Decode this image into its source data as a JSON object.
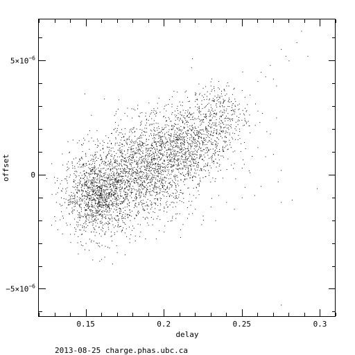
{
  "chart_data": {
    "type": "scatter",
    "title": "",
    "xlabel": "delay",
    "ylabel": "offset",
    "xlim": [
      0.12,
      0.31
    ],
    "ylim": [
      -6.2e-06,
      6.8e-06
    ],
    "grid": false,
    "x_ticks": [
      {
        "value": 0.15,
        "label": "0.15"
      },
      {
        "value": 0.2,
        "label": "0.2"
      },
      {
        "value": 0.25,
        "label": "0.25"
      },
      {
        "value": 0.3,
        "label": "0.3"
      }
    ],
    "y_ticks": [
      {
        "value": -5e-06,
        "mantissa": "−5×10",
        "exponent": "−6"
      },
      {
        "value": 0,
        "mantissa": "0",
        "exponent": ""
      },
      {
        "value": 5e-06,
        "mantissa": "5×10",
        "exponent": "−6"
      }
    ],
    "x_minor_step": 0.01,
    "y_minor_step": 1e-06,
    "series": [
      {
        "points": [
          [
            0.128,
            -2.2e-06
          ],
          [
            0.131,
            -1.2e-06
          ],
          [
            0.135,
            -1.8e-06
          ],
          [
            0.138,
            -2.2e-06
          ],
          [
            0.14,
            -2.6e-06
          ],
          [
            0.142,
            -8e-07
          ],
          [
            0.145,
            -2.7e-06
          ],
          [
            0.148,
            -3.1e-06
          ],
          [
            0.15,
            -3e-06
          ],
          [
            0.152,
            -3.3e-06
          ],
          [
            0.155,
            -2.9e-06
          ],
          [
            0.158,
            -3.1e-06
          ],
          [
            0.16,
            -3.7e-06
          ],
          [
            0.162,
            -3.6e-06
          ],
          [
            0.165,
            -3.2e-06
          ],
          [
            0.167,
            -3.9e-06
          ],
          [
            0.17,
            -3.4e-06
          ],
          [
            0.175,
            -3.5e-06
          ],
          [
            0.178,
            -2.8e-06
          ],
          [
            0.185,
            -2.5e-06
          ],
          [
            0.19,
            -2.2e-06
          ],
          [
            0.195,
            -2.8e-06
          ],
          [
            0.2,
            -2.5e-06
          ],
          [
            0.205,
            -2e-06
          ],
          [
            0.21,
            -1.7e-06
          ],
          [
            0.215,
            -1.9e-06
          ],
          [
            0.22,
            -1.5e-06
          ],
          [
            0.225,
            -1.8e-06
          ],
          [
            0.23,
            -1.4e-06
          ],
          [
            0.233,
            -2e-06
          ],
          [
            0.16,
            7e-07
          ],
          [
            0.165,
            1.1e-06
          ],
          [
            0.17,
            1.4e-06
          ],
          [
            0.175,
            1.8e-06
          ],
          [
            0.18,
            2e-06
          ],
          [
            0.185,
            2.3e-06
          ],
          [
            0.19,
            2.4e-06
          ],
          [
            0.195,
            2.7e-06
          ],
          [
            0.2,
            2.9e-06
          ],
          [
            0.205,
            3.1e-06
          ],
          [
            0.21,
            3.2e-06
          ],
          [
            0.215,
            3.4e-06
          ],
          [
            0.22,
            3.6e-06
          ],
          [
            0.225,
            3.8e-06
          ],
          [
            0.23,
            3.9e-06
          ],
          [
            0.235,
            4.1e-06
          ],
          [
            0.24,
            3.9e-06
          ],
          [
            0.245,
            3.8e-06
          ],
          [
            0.25,
            3.7e-06
          ],
          [
            0.255,
            3.5e-06
          ],
          [
            0.26,
            4.1e-06
          ],
          [
            0.262,
            4.5e-06
          ],
          [
            0.265,
            4.3e-06
          ],
          [
            0.268,
            4.8e-06
          ],
          [
            0.27,
            4.2e-06
          ],
          [
            0.272,
            3.9e-06
          ],
          [
            0.275,
            5.5e-06
          ],
          [
            0.278,
            5.2e-06
          ],
          [
            0.28,
            5e-06
          ],
          [
            0.285,
            5.8e-06
          ],
          [
            0.288,
            6.3e-06
          ],
          [
            0.292,
            5.2e-06
          ],
          [
            0.245,
            5e-07
          ],
          [
            0.25,
            3e-07
          ],
          [
            0.255,
            1e-07
          ],
          [
            0.258,
            -9e-07
          ],
          [
            0.26,
            1.2e-06
          ],
          [
            0.265,
            8e-07
          ],
          [
            0.27,
            9e-07
          ],
          [
            0.273,
            -3e-07
          ],
          [
            0.275,
            2e-07
          ],
          [
            0.26,
            2.8e-06
          ],
          [
            0.263,
            2.7e-06
          ],
          [
            0.268,
            1.8e-06
          ],
          [
            0.272,
            2.5e-06
          ],
          [
            0.24,
            -1.2e-06
          ],
          [
            0.245,
            -1.5e-06
          ],
          [
            0.235,
            -9e-07
          ],
          [
            0.275,
            -1.2e-06
          ],
          [
            0.282,
            -1.1e-06
          ],
          [
            0.298,
            -6e-07
          ],
          [
            0.275,
            -5.7e-06
          ],
          [
            0.25,
            -1e-06
          ],
          [
            0.262,
            -5e-07
          ]
        ],
        "clusters": [
          {
            "center": [
              0.158,
              -9e-07
            ],
            "spread": [
              0.011,
              8.5e-07
            ],
            "count": 1300
          },
          {
            "center": [
              0.187,
              2e-07
            ],
            "spread": [
              0.016,
              1.05e-06
            ],
            "count": 1500
          },
          {
            "center": [
              0.215,
              1.4e-06
            ],
            "spread": [
              0.013,
              9e-07
            ],
            "count": 900
          },
          {
            "center": [
              0.236,
              2.6e-06
            ],
            "spread": [
              0.009,
              7e-07
            ],
            "count": 300
          }
        ]
      }
    ]
  },
  "footer": {
    "text": "2013-08-25 charge.phas.ubc.ca"
  }
}
